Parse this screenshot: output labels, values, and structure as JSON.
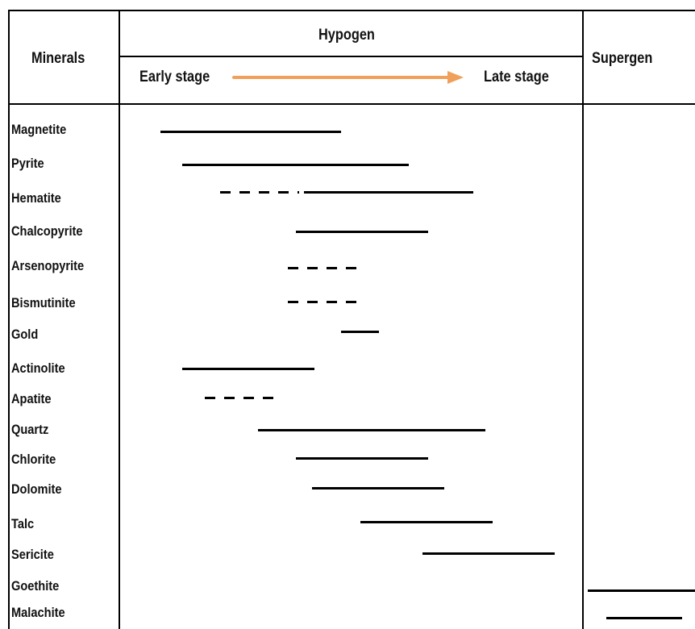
{
  "header": {
    "minerals_label": "Minerals",
    "hypogen_label": "Hypogen",
    "early_stage_label": "Early stage",
    "late_stage_label": "Late stage",
    "supergen_label": "Supergen",
    "arrow_color": "#F0A05A"
  },
  "minerals": [
    "Magnetite",
    "Pyrite",
    "Hematite",
    "Chalcopyrite",
    "Arsenopyrite",
    "Bismutinite",
    "Gold",
    "Actinolite",
    "Apatite",
    "Quartz",
    "Chlorite",
    "Dolomite",
    "Talc",
    "Sericite",
    "Goethite",
    "Malachite"
  ],
  "line_styles": [
    "solid",
    "dashed"
  ]
}
